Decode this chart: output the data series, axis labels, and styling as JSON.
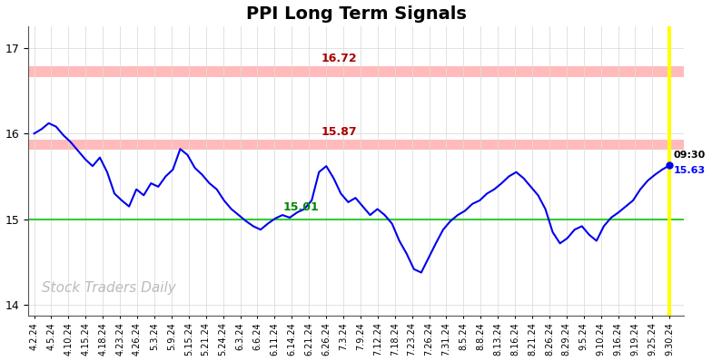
{
  "title": "PPI Long Term Signals",
  "title_fontsize": 14,
  "title_fontweight": "bold",
  "background_color": "#ffffff",
  "line_color": "#0000ee",
  "line_width": 1.5,
  "ylabel_values": [
    14,
    15,
    16,
    17
  ],
  "ylim": [
    13.88,
    17.25
  ],
  "hline_upper": 16.72,
  "hline_upper_color": "#ffbbbb",
  "hline_upper_label_color": "#aa0000",
  "hline_middle": 15.87,
  "hline_middle_color": "#ffbbbb",
  "hline_middle_label_color": "#aa0000",
  "hline_lower_label": 15.01,
  "hline_lower_label_color": "#008800",
  "hline_green": 15.0,
  "hline_green_color": "#33cc33",
  "vline_color": "#ffff00",
  "vline_lw": 3,
  "last_price": 15.63,
  "last_time_label": "09:30",
  "watermark": "Stock Traders Daily",
  "watermark_color": "#bbbbbb",
  "watermark_fontsize": 11,
  "tick_label_fontsize": 7,
  "annotation_fontsize": 9,
  "x_labels": [
    "4.2.24",
    "4.5.24",
    "4.10.24",
    "4.15.24",
    "4.18.24",
    "4.23.24",
    "4.26.24",
    "5.3.24",
    "5.9.24",
    "5.15.24",
    "5.21.24",
    "5.24.24",
    "6.3.24",
    "6.6.24",
    "6.11.24",
    "6.14.24",
    "6.21.24",
    "6.26.24",
    "7.3.24",
    "7.9.24",
    "7.12.24",
    "7.18.24",
    "7.23.24",
    "7.26.24",
    "7.31.24",
    "8.5.24",
    "8.8.24",
    "8.13.24",
    "8.16.24",
    "8.21.24",
    "8.26.24",
    "8.29.24",
    "9.5.24",
    "9.10.24",
    "9.16.24",
    "9.19.24",
    "9.25.24",
    "9.30.24"
  ],
  "y_values": [
    16.0,
    16.05,
    16.12,
    16.08,
    15.98,
    15.9,
    15.8,
    15.7,
    15.62,
    15.72,
    15.55,
    15.3,
    15.22,
    15.15,
    15.35,
    15.28,
    15.42,
    15.38,
    15.5,
    15.58,
    15.82,
    15.75,
    15.6,
    15.52,
    15.42,
    15.35,
    15.22,
    15.12,
    15.05,
    14.98,
    14.92,
    14.88,
    14.95,
    15.01,
    15.05,
    15.02,
    15.08,
    15.12,
    15.22,
    15.55,
    15.62,
    15.48,
    15.3,
    15.2,
    15.25,
    15.15,
    15.05,
    15.12,
    15.05,
    14.95,
    14.75,
    14.6,
    14.42,
    14.38,
    14.55,
    14.72,
    14.88,
    14.98,
    15.05,
    15.1,
    15.18,
    15.22,
    15.3,
    15.35,
    15.42,
    15.5,
    15.55,
    15.48,
    15.38,
    15.28,
    15.12,
    14.85,
    14.72,
    14.78,
    14.88,
    14.92,
    14.82,
    14.75,
    14.92,
    15.02,
    15.08,
    15.15,
    15.22,
    15.35,
    15.45,
    15.52,
    15.58,
    15.63
  ]
}
